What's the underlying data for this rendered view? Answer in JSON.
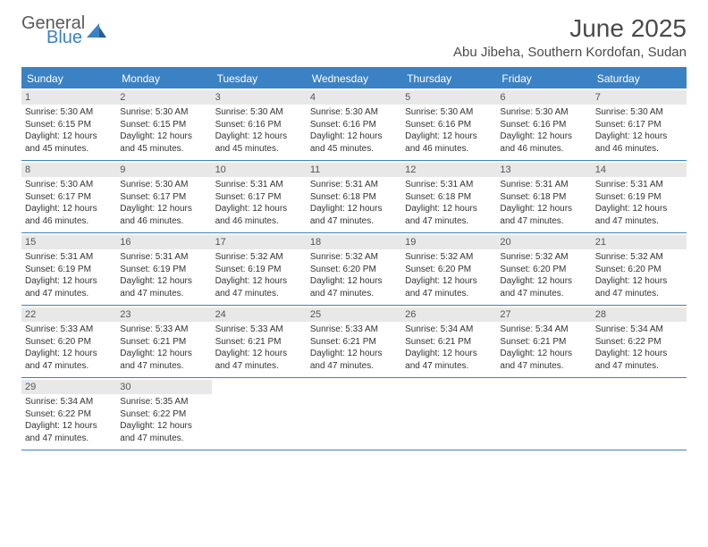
{
  "logo": {
    "general": "General",
    "blue": "Blue"
  },
  "title": "June 2025",
  "location": "Abu Jibeha, Southern Kordofan, Sudan",
  "weekdays": [
    "Sunday",
    "Monday",
    "Tuesday",
    "Wednesday",
    "Thursday",
    "Friday",
    "Saturday"
  ],
  "colors": {
    "brand_blue": "#3b82c4",
    "header_text": "#4a4a4a",
    "daybar_bg": "#e8e8e8",
    "body_text": "#333333",
    "white": "#ffffff"
  },
  "typography": {
    "title_fontsize": 28,
    "location_fontsize": 15,
    "weekday_fontsize": 12,
    "daynum_fontsize": 11,
    "body_fontsize": 10
  },
  "layout": {
    "columns": 7,
    "cell_min_height": 76,
    "outer_margin": 24
  },
  "days": [
    {
      "n": 1,
      "sr": "5:30 AM",
      "ss": "6:15 PM",
      "dl": "12 hours and 45 minutes."
    },
    {
      "n": 2,
      "sr": "5:30 AM",
      "ss": "6:15 PM",
      "dl": "12 hours and 45 minutes."
    },
    {
      "n": 3,
      "sr": "5:30 AM",
      "ss": "6:16 PM",
      "dl": "12 hours and 45 minutes."
    },
    {
      "n": 4,
      "sr": "5:30 AM",
      "ss": "6:16 PM",
      "dl": "12 hours and 45 minutes."
    },
    {
      "n": 5,
      "sr": "5:30 AM",
      "ss": "6:16 PM",
      "dl": "12 hours and 46 minutes."
    },
    {
      "n": 6,
      "sr": "5:30 AM",
      "ss": "6:16 PM",
      "dl": "12 hours and 46 minutes."
    },
    {
      "n": 7,
      "sr": "5:30 AM",
      "ss": "6:17 PM",
      "dl": "12 hours and 46 minutes."
    },
    {
      "n": 8,
      "sr": "5:30 AM",
      "ss": "6:17 PM",
      "dl": "12 hours and 46 minutes."
    },
    {
      "n": 9,
      "sr": "5:30 AM",
      "ss": "6:17 PM",
      "dl": "12 hours and 46 minutes."
    },
    {
      "n": 10,
      "sr": "5:31 AM",
      "ss": "6:17 PM",
      "dl": "12 hours and 46 minutes."
    },
    {
      "n": 11,
      "sr": "5:31 AM",
      "ss": "6:18 PM",
      "dl": "12 hours and 47 minutes."
    },
    {
      "n": 12,
      "sr": "5:31 AM",
      "ss": "6:18 PM",
      "dl": "12 hours and 47 minutes."
    },
    {
      "n": 13,
      "sr": "5:31 AM",
      "ss": "6:18 PM",
      "dl": "12 hours and 47 minutes."
    },
    {
      "n": 14,
      "sr": "5:31 AM",
      "ss": "6:19 PM",
      "dl": "12 hours and 47 minutes."
    },
    {
      "n": 15,
      "sr": "5:31 AM",
      "ss": "6:19 PM",
      "dl": "12 hours and 47 minutes."
    },
    {
      "n": 16,
      "sr": "5:31 AM",
      "ss": "6:19 PM",
      "dl": "12 hours and 47 minutes."
    },
    {
      "n": 17,
      "sr": "5:32 AM",
      "ss": "6:19 PM",
      "dl": "12 hours and 47 minutes."
    },
    {
      "n": 18,
      "sr": "5:32 AM",
      "ss": "6:20 PM",
      "dl": "12 hours and 47 minutes."
    },
    {
      "n": 19,
      "sr": "5:32 AM",
      "ss": "6:20 PM",
      "dl": "12 hours and 47 minutes."
    },
    {
      "n": 20,
      "sr": "5:32 AM",
      "ss": "6:20 PM",
      "dl": "12 hours and 47 minutes."
    },
    {
      "n": 21,
      "sr": "5:32 AM",
      "ss": "6:20 PM",
      "dl": "12 hours and 47 minutes."
    },
    {
      "n": 22,
      "sr": "5:33 AM",
      "ss": "6:20 PM",
      "dl": "12 hours and 47 minutes."
    },
    {
      "n": 23,
      "sr": "5:33 AM",
      "ss": "6:21 PM",
      "dl": "12 hours and 47 minutes."
    },
    {
      "n": 24,
      "sr": "5:33 AM",
      "ss": "6:21 PM",
      "dl": "12 hours and 47 minutes."
    },
    {
      "n": 25,
      "sr": "5:33 AM",
      "ss": "6:21 PM",
      "dl": "12 hours and 47 minutes."
    },
    {
      "n": 26,
      "sr": "5:34 AM",
      "ss": "6:21 PM",
      "dl": "12 hours and 47 minutes."
    },
    {
      "n": 27,
      "sr": "5:34 AM",
      "ss": "6:21 PM",
      "dl": "12 hours and 47 minutes."
    },
    {
      "n": 28,
      "sr": "5:34 AM",
      "ss": "6:22 PM",
      "dl": "12 hours and 47 minutes."
    },
    {
      "n": 29,
      "sr": "5:34 AM",
      "ss": "6:22 PM",
      "dl": "12 hours and 47 minutes."
    },
    {
      "n": 30,
      "sr": "5:35 AM",
      "ss": "6:22 PM",
      "dl": "12 hours and 47 minutes."
    }
  ],
  "labels": {
    "sunrise": "Sunrise:",
    "sunset": "Sunset:",
    "daylight": "Daylight:"
  }
}
